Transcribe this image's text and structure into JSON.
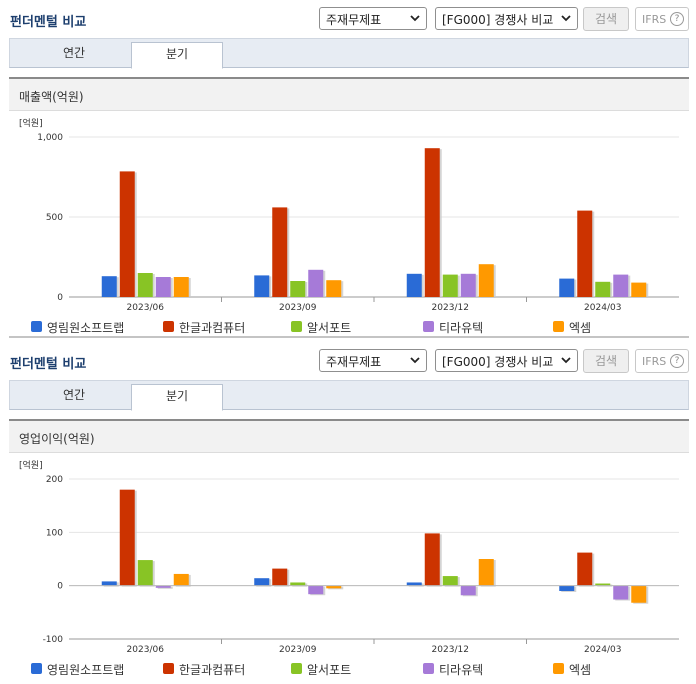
{
  "panels": [
    {
      "title": "펀더멘털 비교",
      "select1": "주재무제표",
      "select2": "[FG000] 경쟁사 비교",
      "search_button": "검색",
      "ifrs_label": "IFRS",
      "ifrs_help": "?",
      "tabs": [
        {
          "label": "연간"
        },
        {
          "label": "분기"
        }
      ],
      "active_tab": 1,
      "chart_title": "매출액(억원)"
    },
    {
      "title": "펀더멘털 비교",
      "select1": "주재무제표",
      "select2": "[FG000] 경쟁사 비교",
      "search_button": "검색",
      "ifrs_label": "IFRS",
      "ifrs_help": "?",
      "tabs": [
        {
          "label": "연간"
        },
        {
          "label": "분기"
        }
      ],
      "active_tab": 1,
      "chart_title": "영업이익(억원)"
    }
  ],
  "chart_data": [
    {
      "type": "bar",
      "title": "매출액(억원)",
      "unit_label": "[억원]",
      "categories": [
        "2023/06",
        "2023/09",
        "2023/12",
        "2024/03"
      ],
      "ylim": [
        0,
        1000
      ],
      "yticks": [
        0,
        500,
        1000
      ],
      "ytick_labels": [
        "0",
        "500",
        "1,000"
      ],
      "grid": true,
      "legend_position": "bottom",
      "series": [
        {
          "name": "영림원소프트랩",
          "color": "#2a6bd6",
          "values": [
            130,
            135,
            145,
            115
          ]
        },
        {
          "name": "한글과컴퓨터",
          "color": "#cc3300",
          "values": [
            785,
            560,
            930,
            540
          ]
        },
        {
          "name": "알서포트",
          "color": "#88c425",
          "values": [
            150,
            100,
            140,
            95
          ]
        },
        {
          "name": "티라유텍",
          "color": "#a67ad8",
          "values": [
            125,
            170,
            145,
            140
          ]
        },
        {
          "name": "엑셈",
          "color": "#ff9900",
          "values": [
            125,
            105,
            205,
            90
          ]
        }
      ]
    },
    {
      "type": "bar",
      "title": "영업이익(억원)",
      "unit_label": "[억원]",
      "categories": [
        "2023/06",
        "2023/09",
        "2023/12",
        "2024/03"
      ],
      "ylim": [
        -100,
        200
      ],
      "yticks": [
        -100,
        0,
        100,
        200
      ],
      "ytick_labels": [
        "-100",
        "0",
        "100",
        "200"
      ],
      "grid": true,
      "legend_position": "bottom",
      "series": [
        {
          "name": "영림원소프트랩",
          "color": "#2a6bd6",
          "values": [
            8,
            14,
            6,
            -10
          ]
        },
        {
          "name": "한글과컴퓨터",
          "color": "#cc3300",
          "values": [
            180,
            32,
            98,
            62
          ]
        },
        {
          "name": "알서포트",
          "color": "#88c425",
          "values": [
            48,
            6,
            18,
            4
          ]
        },
        {
          "name": "티라유텍",
          "color": "#a67ad8",
          "values": [
            -4,
            -16,
            -18,
            -26
          ]
        },
        {
          "name": "엑셈",
          "color": "#ff9900",
          "values": [
            22,
            -5,
            50,
            -32
          ]
        }
      ]
    }
  ]
}
